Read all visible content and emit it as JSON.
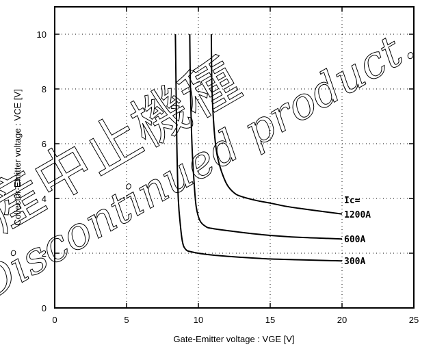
{
  "chart_data": {
    "type": "line",
    "xlabel": "Gate-Emitter voltage : VGE [V]",
    "ylabel": "Collector-Emitter voltage : VCE [V]",
    "xlim": [
      0,
      25
    ],
    "ylim": [
      0,
      11
    ],
    "x_ticks": [
      "0",
      "5",
      "10",
      "15",
      "20",
      "25"
    ],
    "y_ticks": [
      "0",
      "2",
      "4",
      "6",
      "8",
      "10"
    ],
    "x_tick_values": [
      0,
      5,
      10,
      15,
      20,
      25
    ],
    "y_tick_values": [
      0,
      2,
      4,
      6,
      8,
      10
    ],
    "grid": true,
    "grid_style": "dotted",
    "annotation_header": "Ic=",
    "series": [
      {
        "name": "300A",
        "points": [
          [
            8.4,
            10
          ],
          [
            8.45,
            8
          ],
          [
            8.5,
            6
          ],
          [
            8.6,
            4
          ],
          [
            8.75,
            3
          ],
          [
            8.9,
            2.4
          ],
          [
            9.1,
            2.15
          ],
          [
            9.5,
            2.05
          ],
          [
            11,
            1.93
          ],
          [
            13,
            1.85
          ],
          [
            15,
            1.79
          ],
          [
            17,
            1.76
          ],
          [
            19,
            1.73
          ],
          [
            20,
            1.72
          ]
        ]
      },
      {
        "name": "600A",
        "points": [
          [
            9.4,
            10
          ],
          [
            9.45,
            8
          ],
          [
            9.55,
            6
          ],
          [
            9.7,
            4.6
          ],
          [
            9.85,
            3.7
          ],
          [
            10.1,
            3.2
          ],
          [
            10.5,
            2.98
          ],
          [
            11,
            2.9
          ],
          [
            13,
            2.76
          ],
          [
            15,
            2.65
          ],
          [
            17,
            2.58
          ],
          [
            19,
            2.54
          ],
          [
            20,
            2.52
          ]
        ]
      },
      {
        "name": "1200A",
        "points": [
          [
            10.9,
            10
          ],
          [
            10.95,
            8
          ],
          [
            11.1,
            6.5
          ],
          [
            11.3,
            5.6
          ],
          [
            11.6,
            5
          ],
          [
            12,
            4.5
          ],
          [
            12.5,
            4.2
          ],
          [
            13,
            4.07
          ],
          [
            14,
            3.93
          ],
          [
            15,
            3.83
          ],
          [
            16,
            3.72
          ],
          [
            17,
            3.64
          ],
          [
            18,
            3.57
          ],
          [
            19,
            3.5
          ],
          [
            20,
            3.43
          ]
        ]
      }
    ],
    "watermark_text": [
      "生産中止機種",
      "Discontinued product."
    ]
  }
}
